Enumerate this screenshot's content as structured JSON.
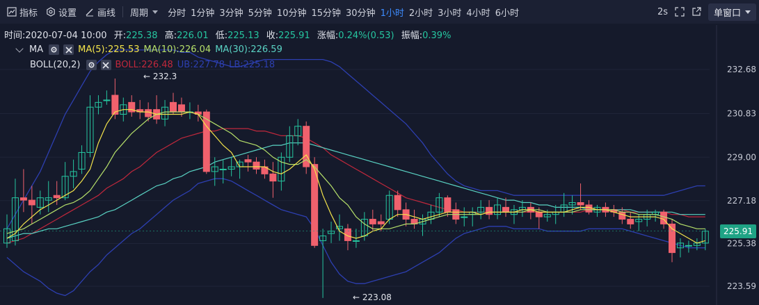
{
  "toolbar": {
    "indicators_label": "指标",
    "settings_label": "设置",
    "draw_label": "画线",
    "period_label": "周期",
    "intervals": [
      "分时",
      "1分钟",
      "3分钟",
      "5分钟",
      "10分钟",
      "15分钟",
      "30分钟",
      "1小时",
      "2小时",
      "3小时",
      "4小时",
      "6小时"
    ],
    "active_interval": "1小时",
    "refresh_label": "2s",
    "window_label": "单窗口"
  },
  "info": {
    "time_label": "时间:",
    "time": "2020-07-04 10:00",
    "open_label": "开:",
    "open": "225.38",
    "high_label": "高:",
    "high": "226.01",
    "low_label": "低:",
    "low": "225.13",
    "close_label": "收:",
    "close": "225.91",
    "change_label": "涨幅:",
    "change": "0.24%(0.53)",
    "amp_label": "振幅:",
    "amp": "0.39%"
  },
  "ma_row": {
    "name": "MA",
    "ma5": "MA(5):225.53",
    "ma10": "MA(10):226.04",
    "ma30": "MA(30):226.59"
  },
  "boll_row": {
    "name": "BOLL(20,2)",
    "boll": "BOLL:226.48",
    "ub": "UB:227.78",
    "lb": "LB:225.18"
  },
  "colors": {
    "up": "#26c6a0",
    "down": "#f0616d",
    "ma5": "#f4e44b",
    "ma10": "#b6e06a",
    "ma30": "#5ad3c4",
    "boll": "#c0283c",
    "band": "#2d3fb0",
    "accent": "#3d8cff"
  },
  "annotations": {
    "max_label": "232.3",
    "min_label": "223.08"
  },
  "price_tag": "225.91",
  "chart_data": {
    "type": "candlestick",
    "title": "",
    "y_ticks": [
      232.68,
      230.83,
      229.0,
      227.18,
      225.38,
      223.59
    ],
    "ylim": [
      223.0,
      233.7
    ],
    "candles": [
      {
        "o": 225.4,
        "h": 226.6,
        "l": 225.2,
        "c": 226.0
      },
      {
        "o": 225.5,
        "h": 228.1,
        "l": 225.3,
        "c": 227.3
      },
      {
        "o": 227.3,
        "h": 228.5,
        "l": 226.7,
        "c": 227.2
      },
      {
        "o": 227.2,
        "h": 227.8,
        "l": 226.2,
        "c": 227.0
      },
      {
        "o": 226.9,
        "h": 227.6,
        "l": 226.6,
        "c": 227.3
      },
      {
        "o": 227.2,
        "h": 228.0,
        "l": 226.7,
        "c": 227.3
      },
      {
        "o": 227.4,
        "h": 228.0,
        "l": 227.0,
        "c": 227.3
      },
      {
        "o": 227.3,
        "h": 228.8,
        "l": 227.2,
        "c": 228.2
      },
      {
        "o": 228.2,
        "h": 228.9,
        "l": 227.7,
        "c": 228.4
      },
      {
        "o": 228.5,
        "h": 229.5,
        "l": 228.3,
        "c": 229.2
      },
      {
        "o": 229.2,
        "h": 231.6,
        "l": 229.0,
        "c": 231.1
      },
      {
        "o": 231.1,
        "h": 231.6,
        "l": 230.8,
        "c": 231.3
      },
      {
        "o": 231.4,
        "h": 231.8,
        "l": 231.2,
        "c": 231.4
      },
      {
        "o": 231.6,
        "h": 232.3,
        "l": 230.6,
        "c": 230.8
      },
      {
        "o": 230.8,
        "h": 231.5,
        "l": 230.5,
        "c": 231.2
      },
      {
        "o": 231.3,
        "h": 231.6,
        "l": 230.7,
        "c": 230.9
      },
      {
        "o": 231.0,
        "h": 231.4,
        "l": 230.6,
        "c": 230.9
      },
      {
        "o": 231.0,
        "h": 231.3,
        "l": 230.5,
        "c": 230.7
      },
      {
        "o": 231.0,
        "h": 231.6,
        "l": 230.4,
        "c": 230.6
      },
      {
        "o": 230.6,
        "h": 231.4,
        "l": 230.3,
        "c": 231.1
      },
      {
        "o": 231.3,
        "h": 231.7,
        "l": 230.8,
        "c": 230.9
      },
      {
        "o": 231.2,
        "h": 231.5,
        "l": 230.7,
        "c": 230.9
      },
      {
        "o": 230.9,
        "h": 231.3,
        "l": 230.6,
        "c": 230.9
      },
      {
        "o": 230.9,
        "h": 231.2,
        "l": 230.5,
        "c": 230.8
      },
      {
        "o": 230.9,
        "h": 231.0,
        "l": 228.3,
        "c": 228.4
      },
      {
        "o": 228.4,
        "h": 229.0,
        "l": 227.8,
        "c": 228.6
      },
      {
        "o": 228.5,
        "h": 228.9,
        "l": 227.9,
        "c": 228.5
      },
      {
        "o": 228.5,
        "h": 229.0,
        "l": 228.2,
        "c": 228.6
      },
      {
        "o": 228.6,
        "h": 228.9,
        "l": 228.1,
        "c": 228.8
      },
      {
        "o": 228.9,
        "h": 229.1,
        "l": 228.4,
        "c": 228.8
      },
      {
        "o": 228.8,
        "h": 229.0,
        "l": 228.3,
        "c": 228.5
      },
      {
        "o": 228.6,
        "h": 228.9,
        "l": 228.1,
        "c": 228.3
      },
      {
        "o": 228.3,
        "h": 228.8,
        "l": 227.3,
        "c": 228.0
      },
      {
        "o": 228.0,
        "h": 229.2,
        "l": 227.6,
        "c": 229.0
      },
      {
        "o": 229.0,
        "h": 230.3,
        "l": 228.8,
        "c": 229.9
      },
      {
        "o": 229.9,
        "h": 230.6,
        "l": 229.5,
        "c": 230.3
      },
      {
        "o": 230.3,
        "h": 230.5,
        "l": 228.3,
        "c": 228.6
      },
      {
        "o": 228.7,
        "h": 229.0,
        "l": 225.2,
        "c": 225.3
      },
      {
        "o": 225.5,
        "h": 226.0,
        "l": 223.1,
        "c": 225.7
      },
      {
        "o": 225.8,
        "h": 226.3,
        "l": 225.4,
        "c": 225.9
      },
      {
        "o": 226.0,
        "h": 226.6,
        "l": 225.5,
        "c": 226.1
      },
      {
        "o": 226.0,
        "h": 226.2,
        "l": 225.1,
        "c": 225.5
      },
      {
        "o": 225.5,
        "h": 226.0,
        "l": 225.2,
        "c": 225.5
      },
      {
        "o": 225.7,
        "h": 226.7,
        "l": 225.5,
        "c": 226.4
      },
      {
        "o": 226.4,
        "h": 226.8,
        "l": 225.9,
        "c": 226.2
      },
      {
        "o": 226.3,
        "h": 226.6,
        "l": 225.9,
        "c": 226.2
      },
      {
        "o": 226.4,
        "h": 227.6,
        "l": 226.2,
        "c": 227.4
      },
      {
        "o": 227.4,
        "h": 227.6,
        "l": 226.5,
        "c": 226.8
      },
      {
        "o": 226.8,
        "h": 227.1,
        "l": 226.1,
        "c": 226.4
      },
      {
        "o": 226.4,
        "h": 226.8,
        "l": 226.0,
        "c": 226.2
      },
      {
        "o": 226.2,
        "h": 226.6,
        "l": 225.7,
        "c": 226.4
      },
      {
        "o": 226.4,
        "h": 227.0,
        "l": 226.2,
        "c": 226.7
      },
      {
        "o": 226.7,
        "h": 227.5,
        "l": 226.5,
        "c": 227.3
      },
      {
        "o": 227.3,
        "h": 227.4,
        "l": 226.5,
        "c": 226.7
      },
      {
        "o": 226.8,
        "h": 227.1,
        "l": 226.2,
        "c": 226.4
      },
      {
        "o": 226.5,
        "h": 226.9,
        "l": 226.1,
        "c": 226.5
      },
      {
        "o": 226.6,
        "h": 226.9,
        "l": 226.1,
        "c": 226.7
      },
      {
        "o": 226.7,
        "h": 227.2,
        "l": 226.4,
        "c": 226.9
      },
      {
        "o": 226.9,
        "h": 227.2,
        "l": 226.4,
        "c": 226.6
      },
      {
        "o": 226.6,
        "h": 227.3,
        "l": 226.4,
        "c": 227.0
      },
      {
        "o": 226.9,
        "h": 227.3,
        "l": 226.5,
        "c": 226.7
      },
      {
        "o": 226.6,
        "h": 227.0,
        "l": 226.2,
        "c": 226.8
      },
      {
        "o": 226.8,
        "h": 227.2,
        "l": 226.5,
        "c": 226.9
      },
      {
        "o": 226.9,
        "h": 227.1,
        "l": 226.4,
        "c": 226.7
      },
      {
        "o": 226.7,
        "h": 226.9,
        "l": 226.0,
        "c": 226.5
      },
      {
        "o": 226.5,
        "h": 226.8,
        "l": 226.3,
        "c": 226.6
      },
      {
        "o": 226.6,
        "h": 227.0,
        "l": 226.2,
        "c": 226.7
      },
      {
        "o": 226.7,
        "h": 227.5,
        "l": 226.5,
        "c": 227.0
      },
      {
        "o": 227.0,
        "h": 227.4,
        "l": 226.6,
        "c": 227.1
      },
      {
        "o": 227.1,
        "h": 227.9,
        "l": 226.8,
        "c": 227.0
      },
      {
        "o": 227.0,
        "h": 227.2,
        "l": 226.6,
        "c": 226.7
      },
      {
        "o": 226.7,
        "h": 227.0,
        "l": 226.5,
        "c": 226.9
      },
      {
        "o": 226.9,
        "h": 227.1,
        "l": 226.5,
        "c": 226.7
      },
      {
        "o": 226.8,
        "h": 227.0,
        "l": 226.5,
        "c": 226.7
      },
      {
        "o": 226.7,
        "h": 226.9,
        "l": 226.2,
        "c": 226.4
      },
      {
        "o": 226.4,
        "h": 226.7,
        "l": 226.0,
        "c": 226.2
      },
      {
        "o": 226.3,
        "h": 226.6,
        "l": 225.9,
        "c": 226.4
      },
      {
        "o": 226.4,
        "h": 226.8,
        "l": 226.1,
        "c": 226.6
      },
      {
        "o": 226.6,
        "h": 226.8,
        "l": 226.3,
        "c": 226.7
      },
      {
        "o": 226.7,
        "h": 226.8,
        "l": 226.0,
        "c": 226.2
      },
      {
        "o": 226.2,
        "h": 226.4,
        "l": 224.6,
        "c": 225.0
      },
      {
        "o": 225.2,
        "h": 225.6,
        "l": 224.8,
        "c": 225.4
      },
      {
        "o": 225.3,
        "h": 225.5,
        "l": 225.0,
        "c": 225.3
      },
      {
        "o": 225.3,
        "h": 225.6,
        "l": 225.1,
        "c": 225.4
      },
      {
        "o": 225.4,
        "h": 226.0,
        "l": 225.1,
        "c": 225.9
      }
    ],
    "ma5": [
      225.6,
      225.8,
      226.2,
      226.5,
      226.8,
      227.0,
      227.2,
      227.4,
      227.6,
      228.0,
      228.5,
      229.6,
      230.4,
      230.9,
      231.0,
      231.0,
      230.9,
      230.9,
      230.8,
      230.8,
      230.8,
      230.8,
      230.9,
      230.8,
      230.3,
      229.9,
      229.5,
      229.2,
      228.6,
      228.6,
      228.6,
      228.6,
      228.4,
      228.3,
      228.5,
      228.8,
      229.1,
      228.5,
      227.4,
      226.6,
      225.9,
      225.7,
      225.6,
      225.7,
      225.9,
      226.0,
      226.4,
      226.6,
      226.6,
      226.5,
      226.4,
      226.5,
      226.6,
      226.7,
      226.7,
      226.7,
      226.7,
      226.6,
      226.7,
      226.7,
      226.7,
      226.7,
      226.8,
      226.8,
      226.7,
      226.7,
      226.7,
      226.7,
      226.8,
      226.9,
      226.9,
      226.8,
      226.8,
      226.7,
      226.6,
      226.5,
      226.5,
      226.5,
      226.5,
      226.4,
      226.0,
      225.8,
      225.6,
      225.4,
      225.5
    ],
    "ma10": [
      225.8,
      225.9,
      226.0,
      226.2,
      226.4,
      226.6,
      226.8,
      227.0,
      227.1,
      227.3,
      227.6,
      228.1,
      228.6,
      229.2,
      229.6,
      230.0,
      230.3,
      230.6,
      230.8,
      230.9,
      230.9,
      230.9,
      230.9,
      230.8,
      230.6,
      230.4,
      230.2,
      230.0,
      229.7,
      229.6,
      229.5,
      229.3,
      229.0,
      228.8,
      228.7,
      228.7,
      228.9,
      228.6,
      228.2,
      227.8,
      227.3,
      227.0,
      226.5,
      226.2,
      226.0,
      226.0,
      226.0,
      226.1,
      226.2,
      226.2,
      226.3,
      226.4,
      226.5,
      226.6,
      226.6,
      226.6,
      226.6,
      226.6,
      226.7,
      226.7,
      226.7,
      226.7,
      226.7,
      226.8,
      226.8,
      226.7,
      226.7,
      226.7,
      226.7,
      226.8,
      226.8,
      226.8,
      226.8,
      226.8,
      226.7,
      226.7,
      226.6,
      226.6,
      226.6,
      226.5,
      226.4,
      226.2,
      226.1,
      226.0,
      226.0
    ],
    "ma30": [
      225.6,
      225.7,
      225.8,
      225.8,
      225.9,
      226.0,
      226.0,
      226.1,
      226.2,
      226.3,
      226.4,
      226.5,
      226.7,
      226.8,
      227.0,
      227.2,
      227.4,
      227.6,
      227.8,
      227.9,
      228.1,
      228.2,
      228.4,
      228.5,
      228.6,
      228.8,
      228.9,
      229.0,
      229.1,
      229.2,
      229.3,
      229.4,
      229.5,
      229.5,
      229.6,
      229.6,
      229.6,
      229.5,
      229.4,
      229.3,
      229.2,
      229.1,
      229.0,
      228.9,
      228.8,
      228.7,
      228.6,
      228.5,
      228.4,
      228.3,
      228.2,
      228.1,
      228.0,
      227.9,
      227.8,
      227.7,
      227.6,
      227.5,
      227.4,
      227.3,
      227.2,
      227.2,
      227.1,
      227.1,
      227.0,
      227.0,
      226.9,
      226.9,
      226.9,
      226.9,
      226.8,
      226.8,
      226.8,
      226.8,
      226.8,
      226.8,
      226.7,
      226.7,
      226.7,
      226.7,
      226.7,
      226.6,
      226.6,
      226.6,
      226.6
    ],
    "boll": [
      225.4,
      225.5,
      225.6,
      225.8,
      226.0,
      226.2,
      226.4,
      226.6,
      226.8,
      227.0,
      227.2,
      227.4,
      227.7,
      227.9,
      228.1,
      228.4,
      228.6,
      228.9,
      229.2,
      229.4,
      229.6,
      229.8,
      229.9,
      230.0,
      230.1,
      230.1,
      230.2,
      230.2,
      230.2,
      230.2,
      230.1,
      230.1,
      230.0,
      229.9,
      229.9,
      229.9,
      229.8,
      229.6,
      229.4,
      229.1,
      228.9,
      228.7,
      228.5,
      228.3,
      228.1,
      227.9,
      227.7,
      227.5,
      227.3,
      227.2,
      227.1,
      227.0,
      226.9,
      226.8,
      226.8,
      226.7,
      226.7,
      226.7,
      226.7,
      226.7,
      226.7,
      226.7,
      226.7,
      226.7,
      226.7,
      226.7,
      226.7,
      226.7,
      226.7,
      226.7,
      226.8,
      226.8,
      226.8,
      226.8,
      226.8,
      226.7,
      226.7,
      226.7,
      226.7,
      226.7,
      226.6,
      226.6,
      226.5,
      226.5,
      226.5
    ],
    "ub": [
      226.0,
      226.6,
      227.2,
      227.8,
      228.4,
      229.2,
      230.0,
      230.8,
      231.4,
      232.0,
      232.6,
      233.0,
      233.3,
      233.5,
      233.5,
      233.5,
      233.5,
      233.5,
      233.5,
      233.5,
      233.5,
      233.4,
      233.4,
      233.2,
      233.1,
      233.0,
      232.9,
      232.8,
      232.8,
      232.9,
      233.0,
      233.1,
      233.1,
      233.1,
      233.1,
      233.1,
      233.1,
      233.1,
      233.1,
      233.0,
      232.8,
      232.5,
      232.2,
      231.9,
      231.6,
      231.3,
      231.0,
      230.7,
      230.4,
      230.0,
      229.6,
      229.1,
      228.7,
      228.3,
      228.0,
      227.8,
      227.7,
      227.6,
      227.6,
      227.6,
      227.5,
      227.4,
      227.4,
      227.4,
      227.4,
      227.4,
      227.4,
      227.4,
      227.4,
      227.4,
      227.4,
      227.4,
      227.4,
      227.4,
      227.4,
      227.4,
      227.4,
      227.4,
      227.4,
      227.4,
      227.5,
      227.6,
      227.7,
      227.8,
      227.8
    ],
    "lb": [
      224.8,
      224.5,
      224.2,
      224.0,
      223.8,
      223.5,
      223.3,
      223.2,
      223.4,
      223.8,
      224.2,
      224.5,
      224.9,
      225.2,
      225.5,
      225.8,
      226.0,
      226.3,
      226.6,
      226.9,
      227.2,
      227.4,
      227.6,
      227.9,
      228.0,
      228.1,
      228.1,
      228.0,
      227.8,
      227.6,
      227.4,
      227.2,
      227.0,
      226.8,
      226.7,
      226.6,
      226.5,
      226.0,
      225.3,
      224.6,
      224.1,
      223.8,
      223.7,
      223.7,
      223.8,
      223.9,
      224.0,
      224.1,
      224.2,
      224.4,
      224.6,
      224.8,
      225.0,
      225.3,
      225.6,
      225.8,
      225.9,
      226.0,
      226.1,
      226.1,
      226.1,
      226.0,
      226.0,
      226.0,
      226.0,
      225.9,
      225.9,
      225.9,
      225.9,
      225.9,
      226.0,
      226.0,
      226.0,
      226.0,
      226.0,
      225.9,
      225.8,
      225.7,
      225.6,
      225.5,
      225.4,
      225.3,
      225.2,
      225.2,
      225.2
    ]
  }
}
